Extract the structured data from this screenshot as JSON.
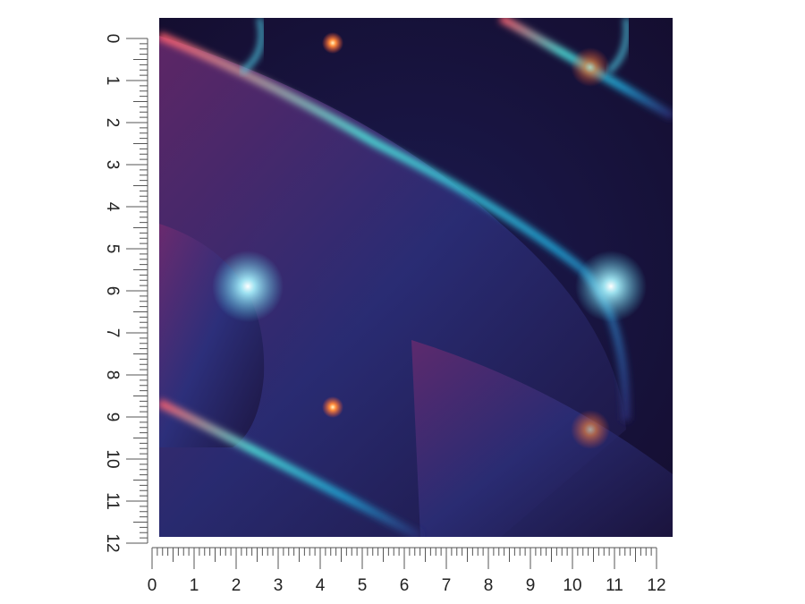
{
  "vertical_ruler": {
    "labels": [
      "0",
      "1",
      "2",
      "3",
      "4",
      "5",
      "6",
      "7",
      "8",
      "9",
      "10",
      "11",
      "12"
    ]
  },
  "horizontal_ruler": {
    "labels": [
      "0",
      "1",
      "2",
      "3",
      "4",
      "5",
      "6",
      "7",
      "8",
      "9",
      "10",
      "11",
      "12"
    ]
  }
}
